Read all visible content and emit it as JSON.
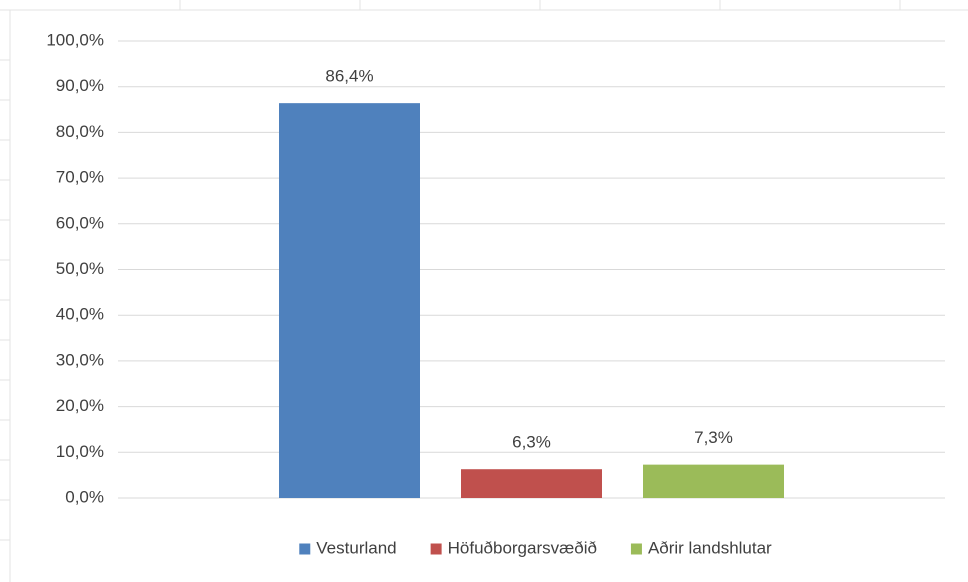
{
  "chart_data": {
    "type": "bar",
    "categories": [
      null
    ],
    "series": [
      {
        "name": "Vesturland",
        "color": "#4f81bd",
        "values": [
          86.4
        ],
        "value_labels": [
          "86,4%"
        ]
      },
      {
        "name": "Höfuðborgarsvæðið",
        "color": "#c0504d",
        "values": [
          6.3
        ],
        "value_labels": [
          "6,3%"
        ]
      },
      {
        "name": "Aðrir landshlutar",
        "color": "#9bbb59",
        "values": [
          7.3
        ],
        "value_labels": [
          "7,3%"
        ]
      }
    ],
    "ylim": [
      0,
      100
    ],
    "yticks": [
      {
        "value": 0,
        "label": "0,0%"
      },
      {
        "value": 10,
        "label": "10,0%"
      },
      {
        "value": 20,
        "label": "20,0%"
      },
      {
        "value": 30,
        "label": "30,0%"
      },
      {
        "value": 40,
        "label": "40,0%"
      },
      {
        "value": 50,
        "label": "50,0%"
      },
      {
        "value": 60,
        "label": "60,0%"
      },
      {
        "value": 70,
        "label": "70,0%"
      },
      {
        "value": 80,
        "label": "80,0%"
      },
      {
        "value": 90,
        "label": "90,0%"
      },
      {
        "value": 100,
        "label": "100,0%"
      }
    ],
    "grid": true,
    "legend": "bottom"
  }
}
